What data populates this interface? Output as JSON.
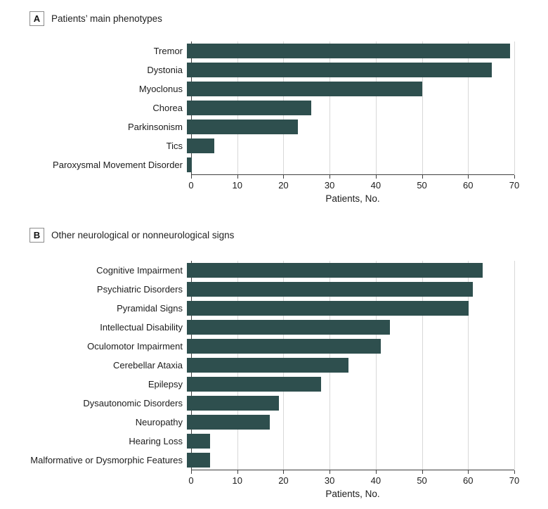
{
  "page": {
    "background": "#ffffff"
  },
  "panels": [
    {
      "key": "A",
      "title": "Patients’ main phenotypes"
    },
    {
      "key": "B",
      "title": "Other neurological or nonneurological signs"
    }
  ],
  "chart_data": [
    {
      "type": "bar",
      "orientation": "horizontal",
      "panel": "A",
      "title": "Patients’ main phenotypes",
      "categories": [
        "Tremor",
        "Dystonia",
        "Myoclonus",
        "Chorea",
        "Parkinsonism",
        "Tics",
        "Paroxysmal Movement Disorder"
      ],
      "values": [
        70,
        66,
        51,
        27,
        24,
        6,
        1
      ],
      "xlabel": "Patients, No.",
      "xlim": [
        0,
        70
      ],
      "xticks": [
        0,
        10,
        20,
        30,
        40,
        50,
        60,
        70
      ],
      "grid": "vertical",
      "legend": "none",
      "bar_color": "#2e4f4e"
    },
    {
      "type": "bar",
      "orientation": "horizontal",
      "panel": "B",
      "title": "Other neurological or nonneurological signs",
      "categories": [
        "Cognitive Impairment",
        "Psychiatric Disorders",
        "Pyramidal Signs",
        "Intellectual Disability",
        "Oculomotor Impairment",
        "Cerebellar Ataxia",
        "Epilepsy",
        "Dysautonomic Disorders",
        "Neuropathy",
        "Hearing Loss",
        "Malformative or Dysmorphic Features"
      ],
      "values": [
        64,
        62,
        61,
        44,
        42,
        35,
        29,
        20,
        18,
        5,
        5
      ],
      "xlabel": "Patients, No.",
      "xlim": [
        0,
        70
      ],
      "xticks": [
        0,
        10,
        20,
        30,
        40,
        50,
        60,
        70
      ],
      "grid": "vertical",
      "legend": "none",
      "bar_color": "#2e4f4e"
    }
  ],
  "colors": {
    "bar": "#2e4f4e",
    "gridline": "#d8d8d8",
    "axis": "#3f3f3f",
    "text": "#1c1c1c",
    "panel_box_border": "#8c8c8c"
  }
}
